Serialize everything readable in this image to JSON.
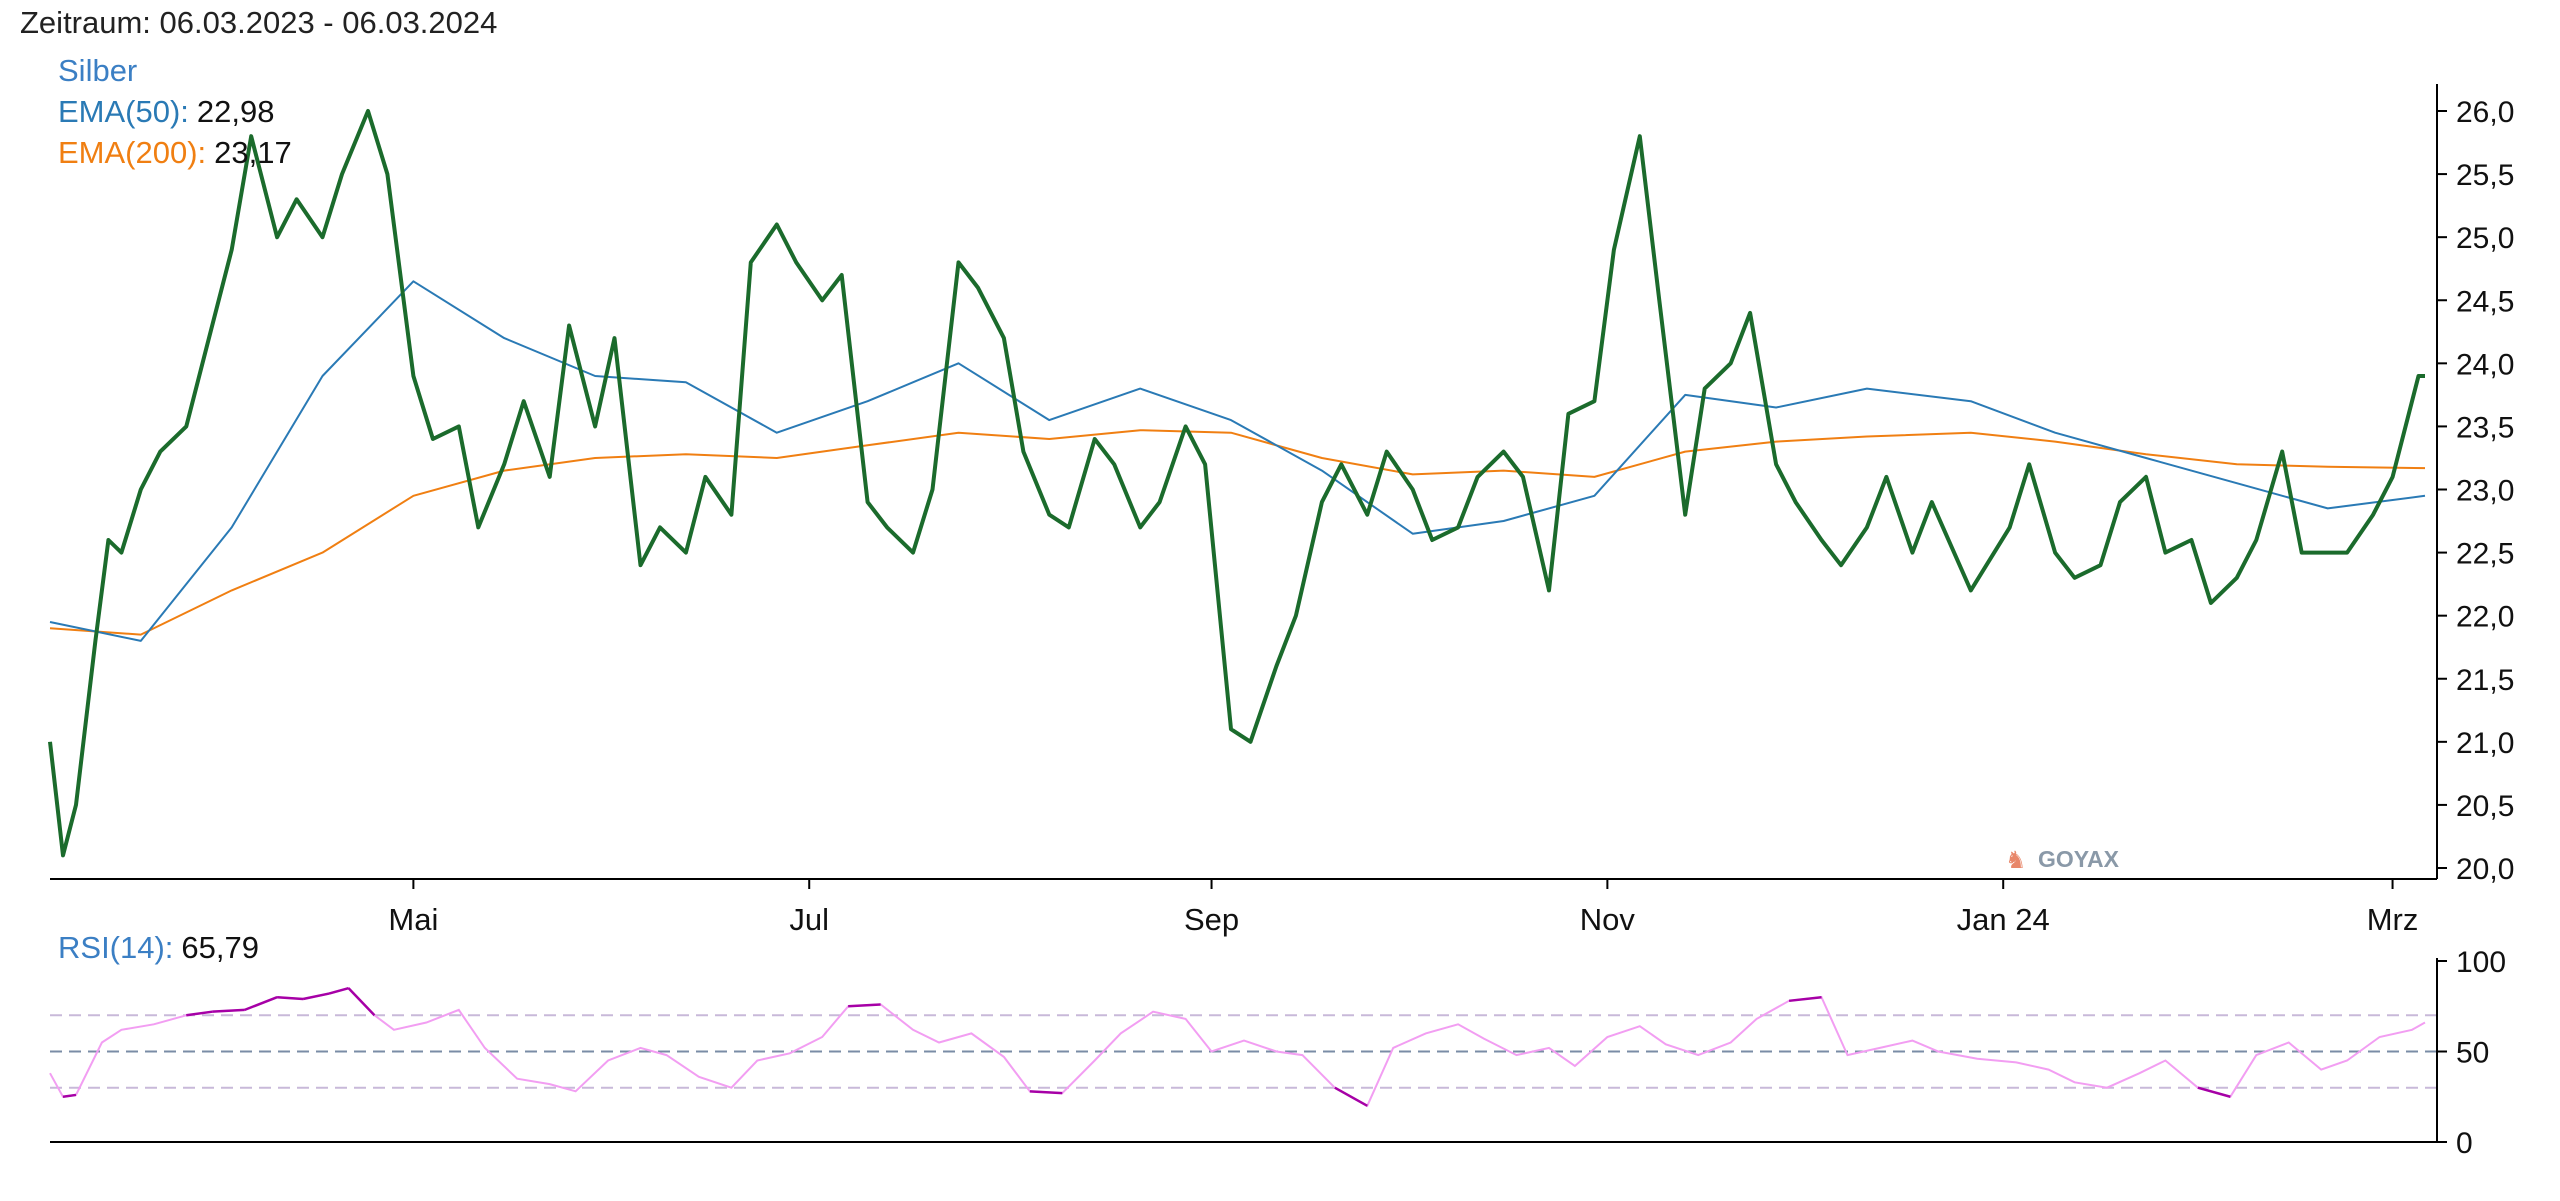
{
  "period_text": "Zeitraum: 06.03.2023 - 06.03.2024",
  "watermark": "GOYAX",
  "colors": {
    "price": "#1b6b2c",
    "ema50": "#2a7ab5",
    "ema200": "#f07f12",
    "rsi_line": "#f29ef2",
    "rsi_extreme": "#a600a6",
    "rsi_level_outer": "#c8b9d9",
    "rsi_level_mid": "#7a8ca6",
    "label_blue": "#3b7fc4",
    "label_orange": "#f07f12"
  },
  "chart_data": [
    {
      "type": "line",
      "title": "Silber",
      "x_tick_labels": [
        "Mai",
        "Jul",
        "Sep",
        "Nov",
        "Jan 24",
        "Mrz"
      ],
      "y_ticks": [
        "20,0",
        "20,5",
        "21,0",
        "21,5",
        "22,0",
        "22,5",
        "23,0",
        "23,5",
        "24,0",
        "24,5",
        "25,0",
        "25,5",
        "26,0"
      ],
      "ylim": [
        20.0,
        26.0
      ],
      "grid": false,
      "legend": [
        {
          "name": "EMA(50):",
          "value": "22,98"
        },
        {
          "name": "EMA(200):",
          "value": "23,17"
        }
      ],
      "series": [
        {
          "name": "Silber",
          "x": [
            "2023-03-06",
            "2023-03-08",
            "2023-03-10",
            "2023-03-13",
            "2023-03-15",
            "2023-03-17",
            "2023-03-20",
            "2023-03-23",
            "2023-03-27",
            "2023-03-30",
            "2023-04-03",
            "2023-04-06",
            "2023-04-10",
            "2023-04-13",
            "2023-04-17",
            "2023-04-20",
            "2023-04-24",
            "2023-04-27",
            "2023-05-01",
            "2023-05-04",
            "2023-05-08",
            "2023-05-11",
            "2023-05-15",
            "2023-05-18",
            "2023-05-22",
            "2023-05-25",
            "2023-05-29",
            "2023-06-01",
            "2023-06-05",
            "2023-06-08",
            "2023-06-12",
            "2023-06-15",
            "2023-06-19",
            "2023-06-22",
            "2023-06-26",
            "2023-06-29",
            "2023-07-03",
            "2023-07-06",
            "2023-07-10",
            "2023-07-13",
            "2023-07-17",
            "2023-07-20",
            "2023-07-24",
            "2023-07-27",
            "2023-07-31",
            "2023-08-03",
            "2023-08-07",
            "2023-08-10",
            "2023-08-14",
            "2023-08-17",
            "2023-08-21",
            "2023-08-24",
            "2023-08-28",
            "2023-08-31",
            "2023-09-04",
            "2023-09-07",
            "2023-09-11",
            "2023-09-14",
            "2023-09-18",
            "2023-09-21",
            "2023-09-25",
            "2023-09-28",
            "2023-10-02",
            "2023-10-05",
            "2023-10-09",
            "2023-10-12",
            "2023-10-16",
            "2023-10-19",
            "2023-10-23",
            "2023-10-26",
            "2023-10-30",
            "2023-11-02",
            "2023-11-06",
            "2023-11-09",
            "2023-11-13",
            "2023-11-16",
            "2023-11-20",
            "2023-11-23",
            "2023-11-27",
            "2023-11-30",
            "2023-12-04",
            "2023-12-07",
            "2023-12-11",
            "2023-12-14",
            "2023-12-18",
            "2023-12-21",
            "2023-12-27",
            "2024-01-02",
            "2024-01-05",
            "2024-01-09",
            "2024-01-12",
            "2024-01-16",
            "2024-01-19",
            "2024-01-23",
            "2024-01-26",
            "2024-01-30",
            "2024-02-02",
            "2024-02-06",
            "2024-02-09",
            "2024-02-13",
            "2024-02-16",
            "2024-02-20",
            "2024-02-23",
            "2024-02-27",
            "2024-03-01",
            "2024-03-05",
            "2024-03-06"
          ],
          "values": [
            21.0,
            20.1,
            20.5,
            21.8,
            22.6,
            22.5,
            23.0,
            23.3,
            23.5,
            24.1,
            24.9,
            25.8,
            25.0,
            25.3,
            25.0,
            25.5,
            26.0,
            25.5,
            23.9,
            23.4,
            23.5,
            22.7,
            23.2,
            23.7,
            23.1,
            24.3,
            23.5,
            24.2,
            22.4,
            22.7,
            22.5,
            23.1,
            22.8,
            24.8,
            25.1,
            24.8,
            24.5,
            24.7,
            22.9,
            22.7,
            22.5,
            23.0,
            24.8,
            24.6,
            24.2,
            23.3,
            22.8,
            22.7,
            23.4,
            23.2,
            22.7,
            22.9,
            23.5,
            23.2,
            21.1,
            21.0,
            21.6,
            22.0,
            22.9,
            23.2,
            22.8,
            23.3,
            23.0,
            22.6,
            22.7,
            23.1,
            23.3,
            23.1,
            22.2,
            23.6,
            23.7,
            24.9,
            25.8,
            24.5,
            22.8,
            23.8,
            24.0,
            24.4,
            23.2,
            22.9,
            22.6,
            22.4,
            22.7,
            23.1,
            22.5,
            22.9,
            22.2,
            22.7,
            23.2,
            22.5,
            22.3,
            22.4,
            22.9,
            23.1,
            22.5,
            22.6,
            22.1,
            22.3,
            22.6,
            23.3,
            22.5,
            22.5,
            22.5,
            22.8,
            23.1,
            23.9,
            23.9
          ]
        },
        {
          "name": "EMA(50)",
          "x": [
            "2023-03-06",
            "2023-03-20",
            "2023-04-03",
            "2023-04-17",
            "2023-05-01",
            "2023-05-15",
            "2023-05-29",
            "2023-06-12",
            "2023-06-26",
            "2023-07-10",
            "2023-07-24",
            "2023-08-07",
            "2023-08-21",
            "2023-09-04",
            "2023-09-18",
            "2023-10-02",
            "2023-10-16",
            "2023-10-30",
            "2023-11-13",
            "2023-11-27",
            "2023-12-11",
            "2023-12-27",
            "2024-01-09",
            "2024-01-23",
            "2024-02-06",
            "2024-02-20",
            "2024-03-06"
          ],
          "values": [
            21.95,
            21.8,
            22.7,
            23.9,
            24.65,
            24.2,
            23.9,
            23.85,
            23.45,
            23.7,
            24.0,
            23.55,
            23.8,
            23.55,
            23.15,
            22.65,
            22.75,
            22.95,
            23.75,
            23.65,
            23.8,
            23.7,
            23.45,
            23.25,
            23.05,
            22.85,
            22.95
          ]
        },
        {
          "name": "EMA(200)",
          "x": [
            "2023-03-06",
            "2023-03-20",
            "2023-04-03",
            "2023-04-17",
            "2023-05-01",
            "2023-05-15",
            "2023-05-29",
            "2023-06-12",
            "2023-06-26",
            "2023-07-10",
            "2023-07-24",
            "2023-08-07",
            "2023-08-21",
            "2023-09-04",
            "2023-09-18",
            "2023-10-02",
            "2023-10-16",
            "2023-10-30",
            "2023-11-13",
            "2023-11-27",
            "2023-12-11",
            "2023-12-27",
            "2024-01-09",
            "2024-01-23",
            "2024-02-06",
            "2024-02-20",
            "2024-03-06"
          ],
          "values": [
            21.9,
            21.85,
            22.2,
            22.5,
            22.95,
            23.15,
            23.25,
            23.28,
            23.25,
            23.35,
            23.45,
            23.4,
            23.47,
            23.45,
            23.25,
            23.12,
            23.15,
            23.1,
            23.3,
            23.38,
            23.42,
            23.45,
            23.38,
            23.28,
            23.2,
            23.18,
            23.17
          ]
        }
      ]
    },
    {
      "type": "line",
      "title": "RSI(14):",
      "value_label": "65,79",
      "y_ticks": [
        "0",
        "50",
        "100"
      ],
      "ylim": [
        0,
        100
      ],
      "levels": [
        30,
        50,
        70
      ],
      "series": [
        {
          "name": "RSI(14)",
          "x": [
            "2023-03-06",
            "2023-03-08",
            "2023-03-10",
            "2023-03-14",
            "2023-03-17",
            "2023-03-22",
            "2023-03-27",
            "2023-03-31",
            "2023-04-05",
            "2023-04-10",
            "2023-04-14",
            "2023-04-18",
            "2023-04-21",
            "2023-04-25",
            "2023-04-28",
            "2023-05-03",
            "2023-05-08",
            "2023-05-12",
            "2023-05-17",
            "2023-05-22",
            "2023-05-26",
            "2023-05-31",
            "2023-06-05",
            "2023-06-09",
            "2023-06-14",
            "2023-06-19",
            "2023-06-23",
            "2023-06-28",
            "2023-07-03",
            "2023-07-07",
            "2023-07-12",
            "2023-07-17",
            "2023-07-21",
            "2023-07-26",
            "2023-07-31",
            "2023-08-04",
            "2023-08-09",
            "2023-08-14",
            "2023-08-18",
            "2023-08-23",
            "2023-08-28",
            "2023-09-01",
            "2023-09-06",
            "2023-09-11",
            "2023-09-15",
            "2023-09-20",
            "2023-09-25",
            "2023-09-29",
            "2023-10-04",
            "2023-10-09",
            "2023-10-13",
            "2023-10-18",
            "2023-10-23",
            "2023-10-27",
            "2023-11-01",
            "2023-11-06",
            "2023-11-10",
            "2023-11-15",
            "2023-11-20",
            "2023-11-24",
            "2023-11-29",
            "2023-12-04",
            "2023-12-08",
            "2023-12-13",
            "2023-12-18",
            "2023-12-22",
            "2023-12-28",
            "2024-01-03",
            "2024-01-08",
            "2024-01-12",
            "2024-01-17",
            "2024-01-22",
            "2024-01-26",
            "2024-01-31",
            "2024-02-05",
            "2024-02-09",
            "2024-02-14",
            "2024-02-19",
            "2024-02-23",
            "2024-02-28",
            "2024-03-04",
            "2024-03-06"
          ],
          "values": [
            38,
            25,
            26,
            55,
            62,
            65,
            70,
            72,
            73,
            80,
            79,
            82,
            85,
            70,
            62,
            66,
            73,
            52,
            35,
            32,
            28,
            45,
            52,
            48,
            36,
            30,
            45,
            49,
            58,
            75,
            76,
            62,
            55,
            60,
            47,
            28,
            27,
            45,
            60,
            72,
            68,
            50,
            56,
            50,
            48,
            30,
            20,
            52,
            60,
            65,
            57,
            48,
            52,
            42,
            58,
            64,
            54,
            48,
            55,
            68,
            78,
            80,
            48,
            52,
            56,
            50,
            46,
            44,
            40,
            33,
            30,
            38,
            45,
            30,
            25,
            48,
            55,
            40,
            45,
            58,
            62,
            66
          ]
        }
      ]
    }
  ]
}
